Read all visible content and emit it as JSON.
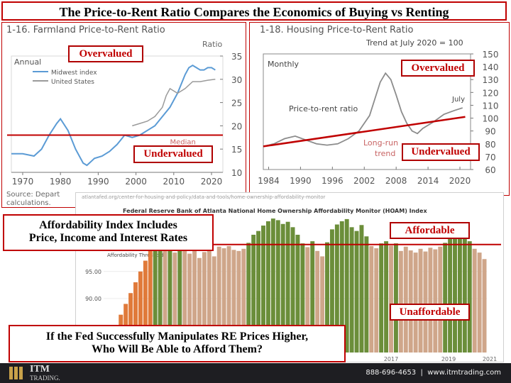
{
  "title": "The Price-to-Rent Ratio Compares the Economics of Buying vs Renting",
  "colors": {
    "accent_red": "#c00000",
    "midwest_blue": "#5b9bd5",
    "us_gray": "#9a9a9a",
    "bar_green": "#6b8e3a",
    "bar_tan": "#cfa68a",
    "bar_orange": "#e07a3a"
  },
  "farmland": {
    "title": "1-16. Farmland Price-to-Rent Ratio",
    "ylabel": "Ratio",
    "legend_title": "Annual",
    "series_names": [
      "Midwest index",
      "United States"
    ],
    "median_label": "Median",
    "source_line1": "Source: Depart",
    "source_line2": "calculations.",
    "overvalued": "Overvalued",
    "undervalued": "Undervalued"
  },
  "housing": {
    "title": "1-18. Housing Price-to-Rent Ratio",
    "subtitle": "Trend at July 2020 = 100",
    "monthly": "Monthly",
    "series_label": "Price-to-rent ratio",
    "trend_label_1": "Long-run",
    "trend_label_2": "trend",
    "july_label": "July",
    "overvalued": "Overvalued",
    "undervalued": "Undervalued"
  },
  "hoam": {
    "url": "atlantafed.org/center-for-housing-and-policy/data-and-tools/home-ownership-affordability-monitor",
    "title": "Federal Reserve Bank of Atlanta National Home Ownership Affordability Monitor (HOAM) Index",
    "threshold_label": "Affordability Threshold",
    "affordable": "Affordable",
    "unaffordable": "Unaffordable"
  },
  "box_affordability": {
    "line1": "Affordability Index Includes",
    "line2": "Price, Income and Interest Rates"
  },
  "box_question": {
    "line1": "If the Fed Successfully Manipulates RE Prices Higher,",
    "line2": "Who Will Be Able to Afford Them?"
  },
  "footer": {
    "brand_1": "ITM",
    "brand_2": "TRADING.",
    "contact": "888-696-4653  |  www.itmtrading.com"
  },
  "chart_data": [
    {
      "type": "line",
      "title": "1-16. Farmland Price-to-Rent Ratio",
      "ylabel": "Ratio",
      "xlim": [
        1967,
        2023
      ],
      "ylim": [
        10,
        35
      ],
      "xticks": [
        1970,
        1980,
        1990,
        2000,
        2010,
        2020
      ],
      "yticks": [
        10,
        15,
        20,
        25,
        30,
        35
      ],
      "median": 18,
      "series": [
        {
          "name": "Midwest index",
          "x": [
            1967,
            1970,
            1973,
            1975,
            1977,
            1979,
            1980,
            1982,
            1984,
            1986,
            1987,
            1989,
            1991,
            1993,
            1995,
            1997,
            1999,
            2001,
            2003,
            2005,
            2007,
            2009,
            2011,
            2012,
            2013,
            2014,
            2015,
            2016,
            2017,
            2018,
            2019,
            2020,
            2021
          ],
          "y": [
            14,
            14,
            13.5,
            15,
            18,
            20.5,
            21.5,
            19,
            15,
            12,
            11.5,
            13,
            13.5,
            14.5,
            16,
            18,
            17.5,
            18,
            19,
            20,
            22,
            24,
            27,
            29,
            31,
            32.5,
            33,
            32.5,
            32,
            32,
            32.5,
            32.5,
            32
          ]
        },
        {
          "name": "United States",
          "x": [
            1999,
            2001,
            2003,
            2005,
            2007,
            2008,
            2009,
            2011,
            2013,
            2015,
            2017,
            2019,
            2021
          ],
          "y": [
            20,
            20.5,
            21,
            22,
            24,
            26.5,
            28,
            27,
            28,
            29.5,
            29.5,
            29.8,
            30
          ]
        }
      ]
    },
    {
      "type": "line",
      "title": "1-18. Housing Price-to-Rent Ratio",
      "subtitle": "Trend at July 2020 = 100",
      "xlim": [
        1983,
        2022
      ],
      "ylim": [
        60,
        150
      ],
      "xticks": [
        1984,
        1990,
        1996,
        2002,
        2008,
        2014,
        2020
      ],
      "yticks": [
        60,
        70,
        80,
        90,
        100,
        110,
        120,
        130,
        140,
        150
      ],
      "series": [
        {
          "name": "Price-to-rent ratio",
          "x": [
            1983,
            1985,
            1987,
            1989,
            1991,
            1993,
            1995,
            1997,
            1999,
            2001,
            2003,
            2004,
            2005,
            2006,
            2007,
            2008,
            2009,
            2010,
            2011,
            2012,
            2013,
            2015,
            2017,
            2019,
            2020.5
          ],
          "y": [
            78,
            80,
            84,
            86,
            83,
            80,
            79,
            80,
            84,
            90,
            102,
            115,
            128,
            135,
            130,
            118,
            105,
            96,
            90,
            88,
            92,
            97,
            103,
            106,
            108
          ]
        },
        {
          "name": "Long-run trend",
          "x": [
            1983,
            2021
          ],
          "y": [
            78,
            101
          ]
        }
      ]
    },
    {
      "type": "bar",
      "title": "Federal Reserve Bank of Atlanta National Home Ownership Affordability Monitor (HOAM) Index",
      "ylim": [
        80,
        106
      ],
      "yticks": [
        90.0,
        95.0,
        100.0
      ],
      "xticks": [
        "2017",
        "2019",
        "2021"
      ],
      "threshold": 100,
      "values": [
        81,
        83,
        85,
        87,
        89,
        91,
        93,
        95,
        97,
        99,
        100.5,
        101.5,
        99.5,
        100.2,
        98.5,
        100.8,
        99,
        98.3,
        98.8,
        97.5,
        98.6,
        99.8,
        97.8,
        99.6,
        99.3,
        99.7,
        99,
        98.8,
        99.2,
        100.3,
        101.8,
        102.5,
        103.5,
        104.3,
        104.8,
        104.5,
        103.8,
        104.2,
        103.2,
        101.8,
        100.2,
        99.5,
        100.6,
        98.8,
        97.8,
        100.4,
        102.8,
        103.7,
        104.3,
        104.7,
        103.2,
        102.5,
        103.6,
        101.5,
        99.7,
        99.3,
        100.2,
        100.6,
        99.8,
        100.2,
        98.8,
        99.6,
        98.9,
        98.5,
        99.2,
        98.7,
        99.4,
        99.1,
        99.6,
        100.3,
        101.2,
        101.8,
        102.4,
        101.5,
        100.6,
        99.2,
        98.5,
        97.3
      ]
    }
  ]
}
